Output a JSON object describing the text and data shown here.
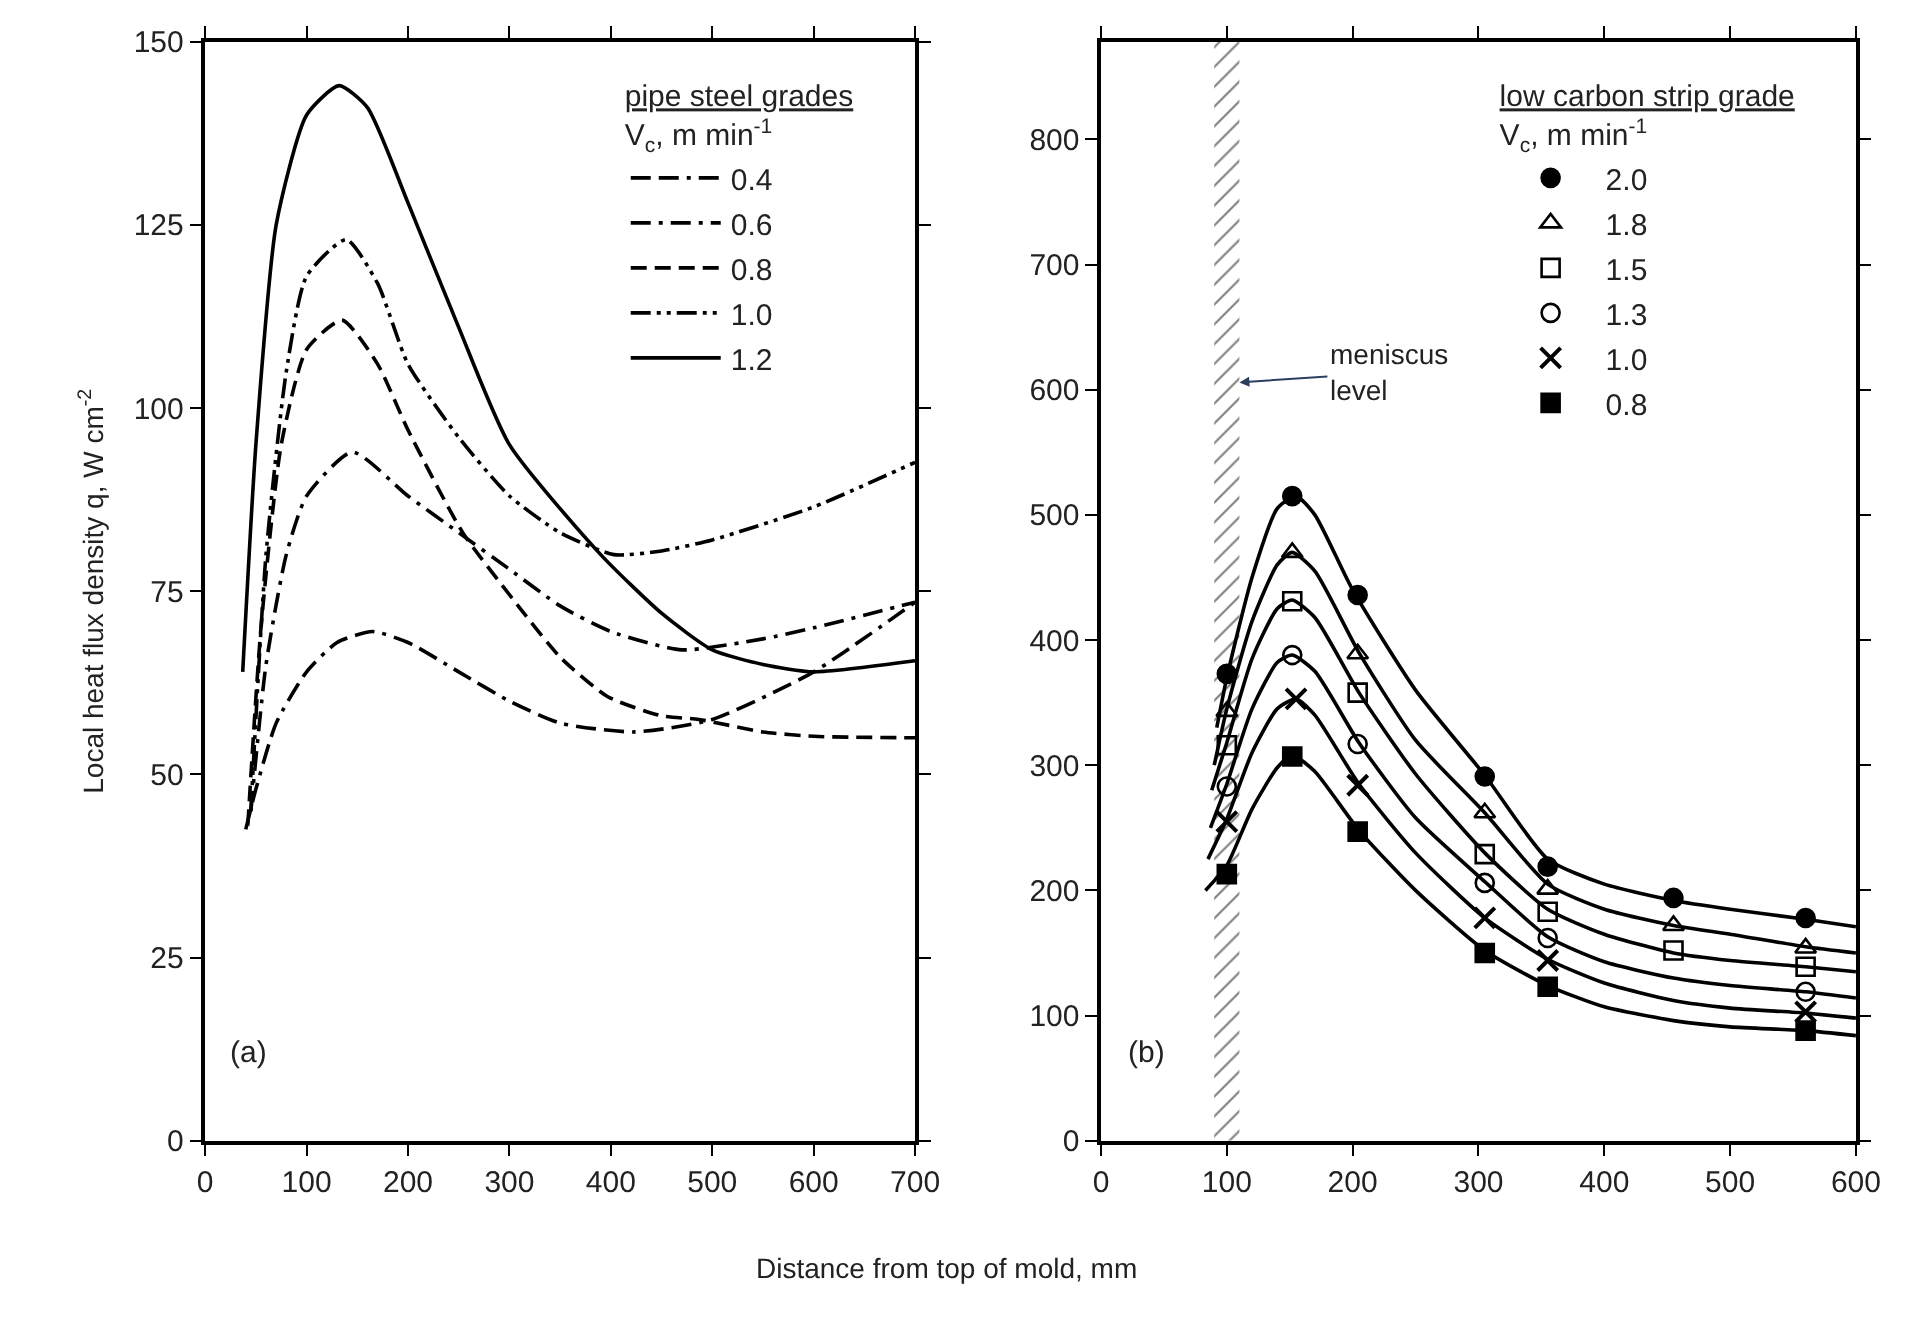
{
  "chart_data": [
    {
      "type": "line",
      "xlabel": "Distance from top of mold, mm",
      "ylabel": "Local heat flux density q, W cm$^{-2}$",
      "legend_title": "pipe steel grades\nV$_{c}$, m min$^{-1}$",
      "annotations": [
        "(a)"
      ],
      "xlim": [
        0,
        700
      ],
      "xticks": [
        0,
        100,
        200,
        300,
        400,
        500,
        600,
        700
      ],
      "ylim": [
        0,
        150
      ],
      "yticks": [
        0,
        25,
        50,
        75,
        100,
        125,
        150
      ],
      "legend": "top right",
      "marker": "none",
      "series": [
        {
          "name": "0.4",
          "color": "#000000",
          "line_style": "dash-dash-dot",
          "x": [
            40,
            50,
            70,
            100,
            130,
            165,
            200,
            250,
            300,
            350,
            423,
            500,
            600,
            700
          ],
          "values": [
            42.5,
            48,
            57,
            64,
            68,
            69.5,
            68,
            64,
            60,
            57,
            55.8,
            57.5,
            64,
            73.5
          ]
        },
        {
          "name": "0.6",
          "color": "#000000",
          "line_style": "dash-dot",
          "x": [
            45,
            60,
            80,
            100,
            145,
            200,
            250,
            300,
            350,
            400,
            470,
            550,
            600,
            700
          ],
          "values": [
            45,
            65,
            80,
            88,
            94,
            88,
            83,
            78,
            73,
            69.5,
            67,
            68.5,
            70,
            73.5
          ]
        },
        {
          "name": "0.8",
          "color": "#000000",
          "line_style": "dashed",
          "x": [
            42,
            55,
            75,
            100,
            135,
            170,
            200,
            254,
            303,
            350,
            397,
            450,
            487,
            550,
            600,
            700
          ],
          "values": [
            43,
            70,
            95,
            108,
            112,
            106,
            97,
            83,
            74,
            66,
            60.6,
            58,
            57.5,
            55.8,
            55.2,
            55
          ]
        },
        {
          "name": "1.0",
          "color": "#000000",
          "line_style": "dash-dot-dot",
          "x": [
            45,
            60,
            80,
            100,
            139,
            170,
            200,
            250,
            300,
            350,
            403,
            450,
            500,
            600,
            700
          ],
          "values": [
            45,
            80,
            105,
            118,
            123,
            117,
            106,
            96,
            88,
            83,
            80,
            80.5,
            82,
            86.5,
            92.6
          ]
        },
        {
          "name": "1.2",
          "color": "#000000",
          "line_style": "solid",
          "x": [
            37,
            50,
            70,
            100,
            132,
            160,
            200,
            250,
            300,
            390,
            450,
            500,
            550,
            600,
            700
          ],
          "values": [
            64,
            95,
            125,
            140,
            144,
            141,
            128,
            111,
            95,
            80,
            72,
            67,
            65,
            64,
            65.5
          ]
        }
      ]
    },
    {
      "type": "scatter",
      "legend_title": "low carbon strip grade\nV$_{c}$, m min$^{-1}$",
      "annotations": [
        "(b)"
      ],
      "xlim": [
        0,
        600
      ],
      "xticks": [
        0,
        100,
        200,
        300,
        400,
        500,
        600
      ],
      "ylim": [
        0,
        878
      ],
      "yticks": [
        0,
        100,
        200,
        300,
        400,
        500,
        600,
        700,
        800
      ],
      "legend": "top right",
      "bands": [
        {
          "axis": "x",
          "from": 90,
          "to": 110,
          "label": "meniscus\nlevel",
          "color": "#000000"
        }
      ],
      "series": [
        {
          "name": "2.0",
          "color": "#000000",
          "marker": "circle",
          "x": [
            100,
            152,
            204,
            305,
            355,
            455,
            560
          ],
          "values": [
            373,
            515,
            436,
            291,
            219,
            194,
            178
          ]
        },
        {
          "name": "1.8",
          "color": "#000000",
          "marker": "triangle-open",
          "x": [
            100,
            152,
            204,
            305,
            355,
            455,
            560
          ],
          "values": [
            343,
            470,
            389,
            262,
            201,
            172,
            154
          ]
        },
        {
          "name": "1.5",
          "color": "#000000",
          "marker": "square-open",
          "x": [
            100,
            152,
            204,
            305,
            355,
            455,
            560
          ],
          "values": [
            316,
            431,
            358,
            229,
            183,
            152,
            139
          ]
        },
        {
          "name": "1.3",
          "color": "#000000",
          "marker": "circle-open",
          "x": [
            100,
            152,
            204,
            305,
            355,
            560
          ],
          "values": [
            283,
            388,
            317,
            206,
            162,
            119
          ]
        },
        {
          "name": "1.0",
          "color": "#000000",
          "marker": "cross",
          "x": [
            100,
            155,
            204,
            305,
            355,
            560
          ],
          "values": [
            255,
            353,
            284,
            178,
            144,
            103
          ]
        },
        {
          "name": "0.8",
          "color": "#000000",
          "marker": "square",
          "x": [
            100,
            152,
            204,
            305,
            355,
            560
          ],
          "values": [
            213,
            307,
            247,
            150,
            123,
            88
          ]
        },
        {
          "type": "line",
          "color": "#000000",
          "x": [
            92,
            100,
            120,
            140,
            155,
            170,
            200,
            250,
            305,
            355,
            400,
            455,
            500,
            560,
            600
          ],
          "values": [
            330,
            370,
            450,
            505,
            515,
            500,
            440,
            360,
            292,
            225,
            205,
            192,
            185,
            177,
            171
          ]
        },
        {
          "type": "line",
          "color": "#000000",
          "x": [
            90,
            100,
            120,
            140,
            152,
            170,
            205,
            250,
            305,
            355,
            400,
            455,
            500,
            560,
            600
          ],
          "values": [
            300,
            345,
            415,
            460,
            470,
            455,
            390,
            320,
            262,
            205,
            185,
            172,
            165,
            155,
            150
          ]
        },
        {
          "type": "line",
          "color": "#000000",
          "x": [
            88,
            100,
            120,
            140,
            152,
            170,
            205,
            250,
            305,
            355,
            400,
            455,
            500,
            560,
            600
          ],
          "values": [
            280,
            318,
            385,
            425,
            432,
            418,
            358,
            293,
            230,
            185,
            165,
            150,
            144,
            139,
            135
          ]
        },
        {
          "type": "line",
          "color": "#000000",
          "x": [
            87,
            100,
            120,
            140,
            152,
            170,
            205,
            250,
            305,
            355,
            400,
            455,
            500,
            560,
            600
          ],
          "values": [
            250,
            285,
            345,
            382,
            388,
            375,
            318,
            258,
            207,
            163,
            143,
            130,
            124,
            119,
            114
          ]
        },
        {
          "type": "line",
          "color": "#000000",
          "x": [
            85,
            100,
            120,
            140,
            155,
            170,
            205,
            250,
            305,
            355,
            400,
            455,
            500,
            560,
            600
          ],
          "values": [
            225,
            257,
            310,
            345,
            353,
            340,
            285,
            230,
            178,
            145,
            126,
            112,
            106,
            102,
            98
          ]
        },
        {
          "type": "line",
          "color": "#000000",
          "x": [
            83,
            100,
            120,
            140,
            152,
            170,
            205,
            250,
            305,
            355,
            400,
            455,
            500,
            560,
            600
          ],
          "values": [
            200,
            220,
            265,
            298,
            308,
            295,
            248,
            200,
            152,
            124,
            107,
            96,
            91,
            88,
            84
          ]
        }
      ]
    }
  ]
}
